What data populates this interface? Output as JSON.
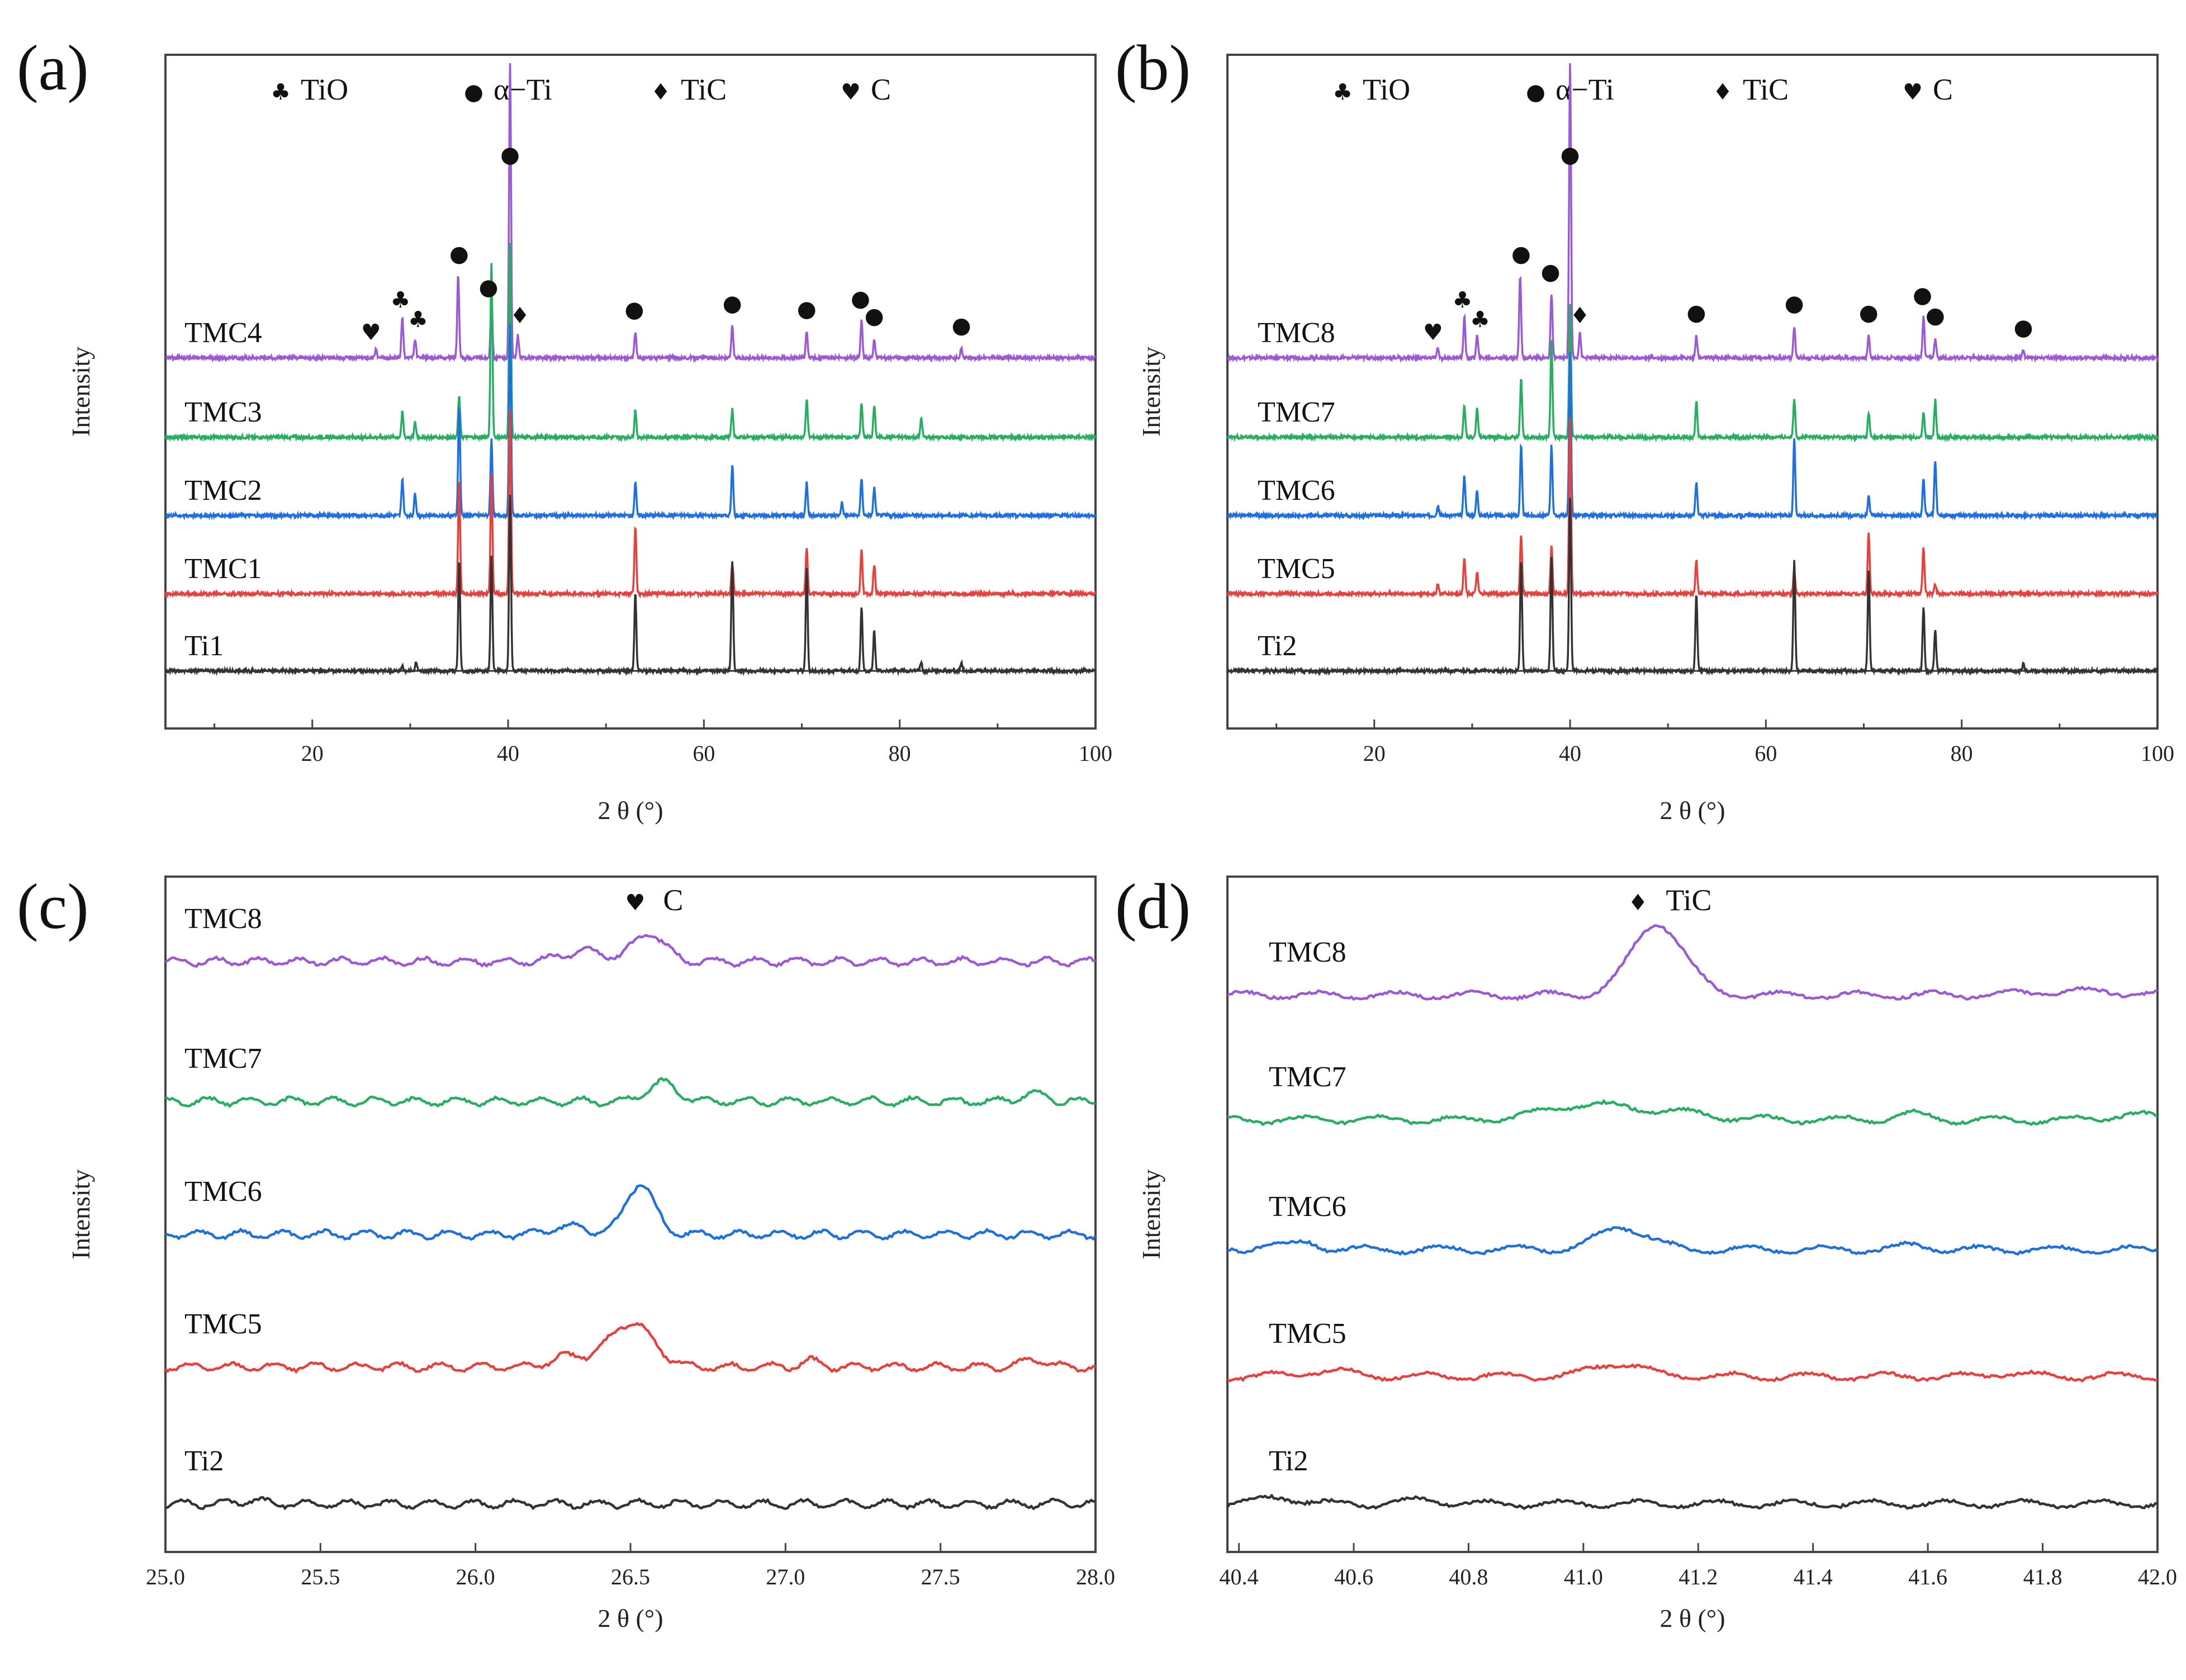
{
  "figure": {
    "panels_letters": [
      "(a)",
      "(b)",
      "(c)",
      "(d)"
    ]
  },
  "chart_data": [
    {
      "id": "a",
      "type": "line",
      "title": "(a)",
      "xlabel": "2 θ (°)",
      "ylabel": "Intensity",
      "xlim": [
        5,
        100
      ],
      "xticks": [
        20,
        40,
        60,
        80,
        100
      ],
      "legend": [
        {
          "symbol": "♣",
          "label": "TiO"
        },
        {
          "symbol": "●",
          "label": "α−Ti"
        },
        {
          "symbol": "♦",
          "label": "TiC"
        },
        {
          "symbol": "♥",
          "label": "C"
        }
      ],
      "series": [
        {
          "name": "TMC4",
          "color": "#9b59d6",
          "peaks": [
            [
              26.5,
              0.05
            ],
            [
              29.2,
              0.22
            ],
            [
              30.5,
              0.1
            ],
            [
              34.9,
              0.45
            ],
            [
              38.3,
              0.33
            ],
            [
              40.2,
              1.6
            ],
            [
              41.0,
              0.12
            ],
            [
              53.0,
              0.14
            ],
            [
              62.9,
              0.17
            ],
            [
              70.5,
              0.14
            ],
            [
              76.1,
              0.2
            ],
            [
              77.4,
              0.1
            ],
            [
              86.3,
              0.05
            ]
          ]
        },
        {
          "name": "TMC3",
          "color": "#27ae60",
          "peaks": [
            [
              29.2,
              0.14
            ],
            [
              30.5,
              0.08
            ],
            [
              35.0,
              0.22
            ],
            [
              38.3,
              0.95
            ],
            [
              40.2,
              1.05
            ],
            [
              53.0,
              0.15
            ],
            [
              62.9,
              0.15
            ],
            [
              70.5,
              0.21
            ],
            [
              76.1,
              0.19
            ],
            [
              77.4,
              0.17
            ],
            [
              82.2,
              0.1
            ]
          ]
        },
        {
          "name": "TMC2",
          "color": "#1e6fe0",
          "peaks": [
            [
              29.2,
              0.2
            ],
            [
              30.5,
              0.12
            ],
            [
              35.0,
              0.6
            ],
            [
              38.3,
              0.42
            ],
            [
              40.2,
              1.05
            ],
            [
              53.0,
              0.18
            ],
            [
              62.9,
              0.28
            ],
            [
              70.5,
              0.18
            ],
            [
              74.1,
              0.07
            ],
            [
              76.1,
              0.2
            ],
            [
              77.4,
              0.15
            ]
          ]
        },
        {
          "name": "TMC1",
          "color": "#e8403c",
          "peaks": [
            [
              35.0,
              0.62
            ],
            [
              38.3,
              0.65
            ],
            [
              40.2,
              1.0
            ],
            [
              53.0,
              0.37
            ],
            [
              62.9,
              0.17
            ],
            [
              70.5,
              0.25
            ],
            [
              76.1,
              0.24
            ],
            [
              77.4,
              0.16
            ]
          ]
        },
        {
          "name": "Ti1",
          "color": "#333333",
          "peaks": [
            [
              29.2,
              0.03
            ],
            [
              30.6,
              0.05
            ],
            [
              35.0,
              0.6
            ],
            [
              38.3,
              0.62
            ],
            [
              40.2,
              0.95
            ],
            [
              53.0,
              0.42
            ],
            [
              62.9,
              0.6
            ],
            [
              70.5,
              0.55
            ],
            [
              76.1,
              0.34
            ],
            [
              77.4,
              0.22
            ],
            [
              82.2,
              0.05
            ],
            [
              86.3,
              0.04
            ]
          ]
        }
      ],
      "annotations": [
        {
          "symbol": "♥",
          "x": 26.0
        },
        {
          "symbol": "♣",
          "x": 29.0
        },
        {
          "symbol": "♣",
          "x": 30.8
        },
        {
          "symbol": "●",
          "x": 35.0
        },
        {
          "symbol": "●",
          "x": 38.0
        },
        {
          "symbol": "●",
          "x": 40.2
        },
        {
          "symbol": "♦",
          "x": 41.2
        },
        {
          "symbol": "●",
          "x": 52.9
        },
        {
          "symbol": "●",
          "x": 62.9
        },
        {
          "symbol": "●",
          "x": 70.5
        },
        {
          "symbol": "●",
          "x": 76.0
        },
        {
          "symbol": "●",
          "x": 77.4
        },
        {
          "symbol": "●",
          "x": 86.3
        }
      ]
    },
    {
      "id": "b",
      "type": "line",
      "title": "(b)",
      "xlabel": "2 θ (°)",
      "ylabel": "Intensity",
      "xlim": [
        5,
        100
      ],
      "xticks": [
        20,
        40,
        60,
        80,
        100
      ],
      "legend": [
        {
          "symbol": "♣",
          "label": "TiO"
        },
        {
          "symbol": "●",
          "label": "α−Ti"
        },
        {
          "symbol": "♦",
          "label": "TiC"
        },
        {
          "symbol": "♥",
          "label": "C"
        }
      ],
      "series": [
        {
          "name": "TMC8",
          "color": "#9b59d6",
          "peaks": [
            [
              26.5,
              0.05
            ],
            [
              29.2,
              0.22
            ],
            [
              30.5,
              0.12
            ],
            [
              34.9,
              0.45
            ],
            [
              38.1,
              0.35
            ],
            [
              40.0,
              1.6
            ],
            [
              41.0,
              0.14
            ],
            [
              52.9,
              0.12
            ],
            [
              62.9,
              0.17
            ],
            [
              70.5,
              0.12
            ],
            [
              76.1,
              0.22
            ],
            [
              77.3,
              0.1
            ],
            [
              86.3,
              0.04
            ]
          ]
        },
        {
          "name": "TMC7",
          "color": "#27ae60",
          "peaks": [
            [
              29.2,
              0.18
            ],
            [
              30.5,
              0.16
            ],
            [
              35.0,
              0.32
            ],
            [
              38.1,
              0.52
            ],
            [
              40.0,
              0.72
            ],
            [
              52.9,
              0.2
            ],
            [
              62.9,
              0.21
            ],
            [
              70.5,
              0.13
            ],
            [
              76.1,
              0.14
            ],
            [
              77.3,
              0.2
            ]
          ]
        },
        {
          "name": "TMC6",
          "color": "#1e6fe0",
          "peaks": [
            [
              26.5,
              0.05
            ],
            [
              29.2,
              0.22
            ],
            [
              30.5,
              0.14
            ],
            [
              35.0,
              0.38
            ],
            [
              38.1,
              0.38
            ],
            [
              40.0,
              0.88
            ],
            [
              52.9,
              0.18
            ],
            [
              62.9,
              0.42
            ],
            [
              70.5,
              0.1
            ],
            [
              76.1,
              0.2
            ],
            [
              77.3,
              0.3
            ]
          ]
        },
        {
          "name": "TMC5",
          "color": "#e8403c",
          "peaks": [
            [
              26.5,
              0.05
            ],
            [
              29.2,
              0.2
            ],
            [
              30.5,
              0.12
            ],
            [
              35.0,
              0.32
            ],
            [
              38.1,
              0.26
            ],
            [
              40.0,
              0.95
            ],
            [
              52.9,
              0.18
            ],
            [
              62.9,
              0.13
            ],
            [
              70.5,
              0.33
            ],
            [
              76.1,
              0.25
            ],
            [
              77.3,
              0.05
            ]
          ]
        },
        {
          "name": "Ti2",
          "color": "#333333",
          "peaks": [
            [
              35.0,
              0.6
            ],
            [
              38.1,
              0.62
            ],
            [
              40.0,
              0.95
            ],
            [
              52.9,
              0.42
            ],
            [
              62.9,
              0.6
            ],
            [
              70.5,
              0.55
            ],
            [
              76.1,
              0.34
            ],
            [
              77.3,
              0.22
            ],
            [
              86.3,
              0.04
            ]
          ]
        }
      ],
      "annotations": [
        {
          "symbol": "♥",
          "x": 26.0
        },
        {
          "symbol": "♣",
          "x": 29.0
        },
        {
          "symbol": "♣",
          "x": 30.8
        },
        {
          "symbol": "●",
          "x": 35.0
        },
        {
          "symbol": "●",
          "x": 38.0
        },
        {
          "symbol": "●",
          "x": 40.0
        },
        {
          "symbol": "♦",
          "x": 41.0
        },
        {
          "symbol": "●",
          "x": 52.9
        },
        {
          "symbol": "●",
          "x": 62.9
        },
        {
          "symbol": "●",
          "x": 70.5
        },
        {
          "symbol": "●",
          "x": 76.0
        },
        {
          "symbol": "●",
          "x": 77.3
        },
        {
          "symbol": "●",
          "x": 86.3
        }
      ]
    },
    {
      "id": "c",
      "type": "line",
      "title": "(c)",
      "xlabel": "2 θ (°)",
      "ylabel": "Intensity",
      "xlim": [
        25.0,
        28.0
      ],
      "xticks": [
        "25.0",
        "25.5",
        "26.0",
        "26.5",
        "27.0",
        "27.5",
        "28.0"
      ],
      "annotation": {
        "symbol": "♥",
        "label": "C",
        "x": 26.58
      },
      "series": [
        {
          "name": "TMC8",
          "color": "#9b59d6",
          "peaks": [
            [
              26.56,
              0.28,
              0.07
            ],
            [
              26.35,
              0.1,
              0.1
            ]
          ]
        },
        {
          "name": "TMC7",
          "color": "#27ae60",
          "peaks": [
            [
              26.6,
              0.18,
              0.07
            ],
            [
              27.8,
              0.08,
              0.06
            ]
          ]
        },
        {
          "name": "TMC6",
          "color": "#1e6fe0",
          "peaks": [
            [
              26.53,
              0.5,
              0.065
            ],
            [
              26.3,
              0.08,
              0.08
            ]
          ]
        },
        {
          "name": "TMC5",
          "color": "#e8403c",
          "peaks": [
            [
              26.5,
              0.44,
              0.1
            ],
            [
              26.3,
              0.1,
              0.08
            ],
            [
              27.08,
              0.06,
              0.04
            ],
            [
              27.8,
              0.08,
              0.05
            ]
          ]
        },
        {
          "name": "Ti2",
          "color": "#333333",
          "peaks": [
            [
              25.28,
              0.04,
              0.05
            ]
          ]
        }
      ]
    },
    {
      "id": "d",
      "type": "line",
      "title": "(d)",
      "xlabel": "2 θ (°)",
      "ylabel": "Intensity",
      "xlim": [
        40.38,
        42.0
      ],
      "xticks": [
        "40.4",
        "40.6",
        "40.8",
        "41.0",
        "41.2",
        "41.4",
        "41.6",
        "41.8",
        "42.0"
      ],
      "annotation": {
        "symbol": "♦",
        "label": "TiC",
        "x": 41.13
      },
      "series": [
        {
          "name": "TMC8",
          "color": "#9b59d6",
          "peaks": [
            [
              41.13,
              0.75,
              0.065
            ],
            [
              41.86,
              0.04,
              0.12
            ]
          ]
        },
        {
          "name": "TMC7",
          "color": "#27ae60",
          "peaks": [
            [
              41.0,
              0.15,
              0.1
            ],
            [
              41.15,
              0.08,
              0.1
            ],
            [
              41.57,
              0.06,
              0.04
            ],
            [
              41.95,
              0.06,
              0.05
            ]
          ]
        },
        {
          "name": "TMC6",
          "color": "#1e6fe0",
          "peaks": [
            [
              41.07,
              0.24,
              0.06
            ],
            [
              40.45,
              0.06,
              0.03
            ],
            [
              40.52,
              0.08,
              0.03
            ],
            [
              41.58,
              0.04,
              0.04
            ]
          ]
        },
        {
          "name": "TMC5",
          "color": "#e8403c",
          "peaks": [
            [
              41.06,
              0.14,
              0.06
            ],
            [
              40.55,
              0.06,
              0.06
            ],
            [
              41.74,
              0.04,
              0.04
            ]
          ]
        },
        {
          "name": "Ti2",
          "color": "#333333",
          "peaks": [
            [
              40.47,
              0.07,
              0.05
            ],
            [
              40.72,
              0.04,
              0.05
            ]
          ]
        }
      ]
    }
  ]
}
